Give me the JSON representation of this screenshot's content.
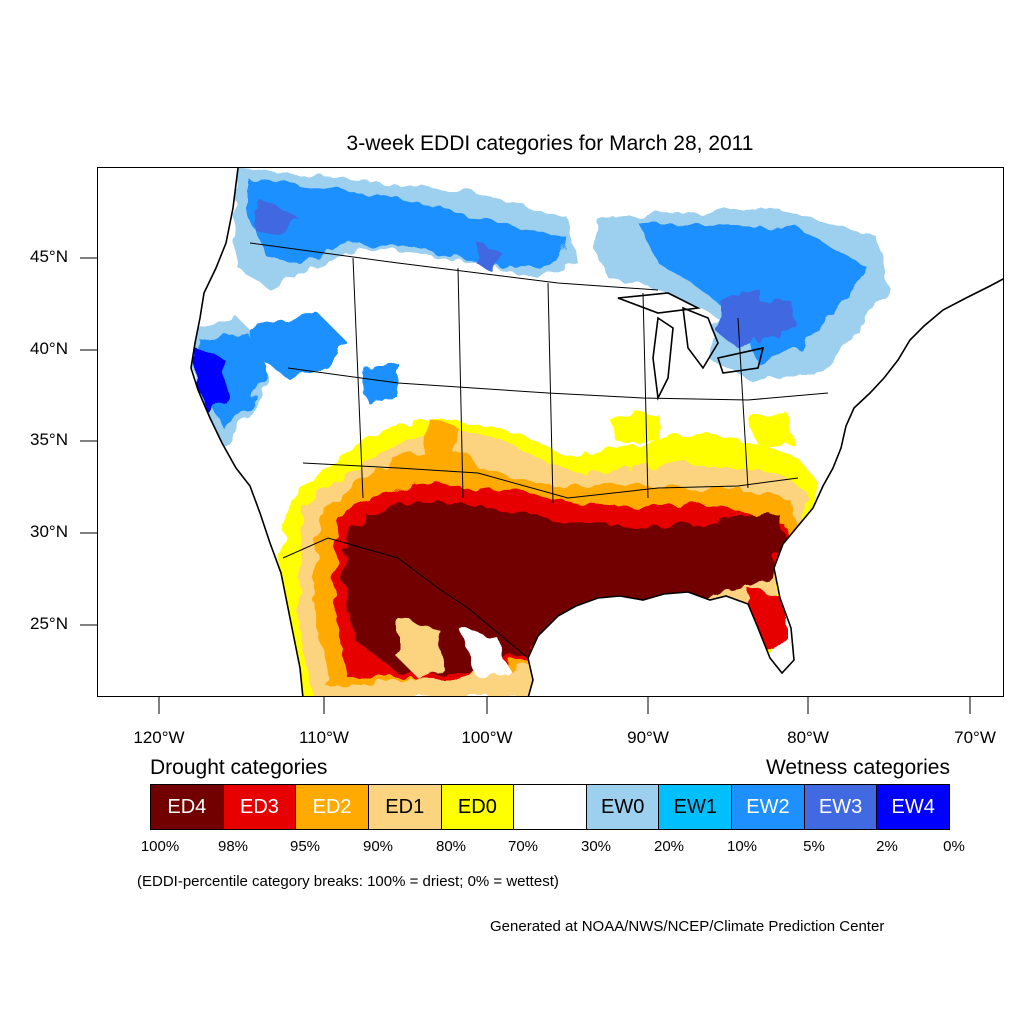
{
  "title": "3-week EDDI categories for March 28, 2011",
  "axes": {
    "y_ticks": [
      "45°N",
      "40°N",
      "35°N",
      "30°N",
      "25°N"
    ],
    "x_ticks": [
      "120°W",
      "110°W",
      "100°W",
      "90°W",
      "80°W",
      "70°W"
    ]
  },
  "legend": {
    "drought_heading": "Drought categories",
    "wetness_heading": "Wetness categories",
    "categories": [
      {
        "label": "ED4",
        "color": "#730000",
        "text_color": "#ffffff"
      },
      {
        "label": "ED3",
        "color": "#e60000",
        "text_color": "#ffffff"
      },
      {
        "label": "ED2",
        "color": "#ffaa00",
        "text_color": "#ffffff"
      },
      {
        "label": "ED1",
        "color": "#fcd37f",
        "text_color": "#000000"
      },
      {
        "label": "ED0",
        "color": "#ffff00",
        "text_color": "#000000"
      },
      {
        "label": "",
        "color": "#ffffff",
        "text_color": "#000000"
      },
      {
        "label": "EW0",
        "color": "#9dcfee",
        "text_color": "#000000"
      },
      {
        "label": "EW1",
        "color": "#00bfff",
        "text_color": "#000000"
      },
      {
        "label": "EW2",
        "color": "#1e90ff",
        "text_color": "#ffffff"
      },
      {
        "label": "EW3",
        "color": "#4169e1",
        "text_color": "#ffffff"
      },
      {
        "label": "EW4",
        "color": "#0000ff",
        "text_color": "#ffffff"
      }
    ],
    "breaks": [
      "100%",
      "98%",
      "95%",
      "90%",
      "80%",
      "70%",
      "30%",
      "20%",
      "10%",
      "5%",
      "2%",
      "0%"
    ]
  },
  "note": "(EDDI-percentile category breaks: 100% = driest; 0% = wettest)",
  "credit": "Generated at NOAA/NWS/NCEP/Climate Prediction Center"
}
